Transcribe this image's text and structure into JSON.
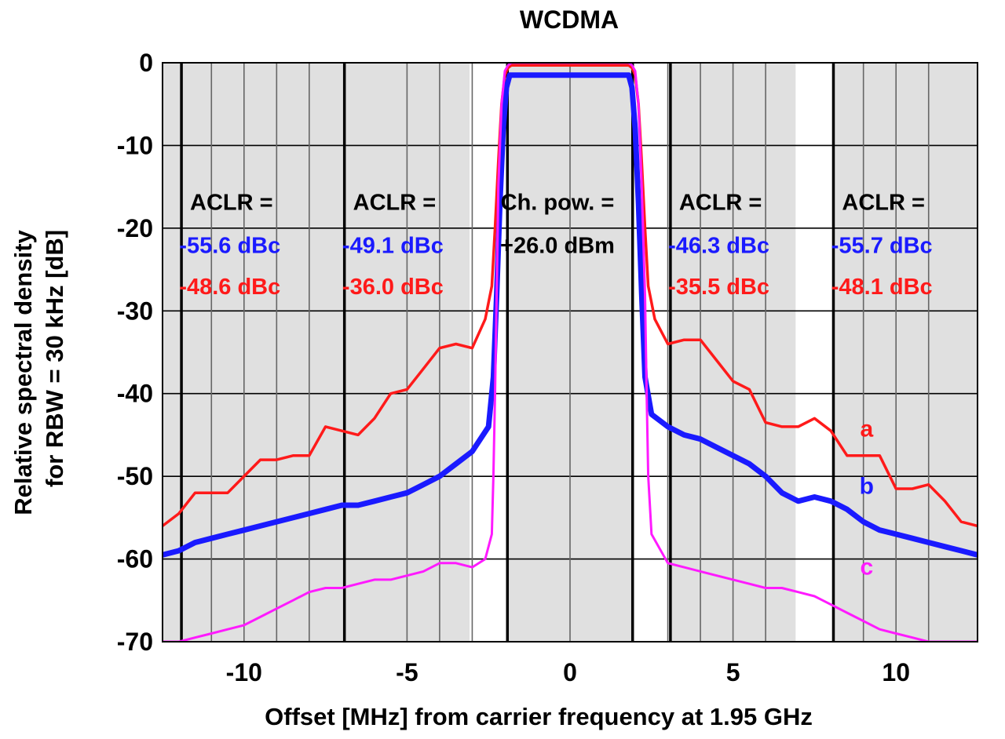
{
  "chart_data": {
    "type": "line",
    "title": "WCDMA",
    "xlabel": "Offset [MHz] from carrier frequency at 1.95 GHz",
    "ylabel_lines": [
      "Relative spectral density",
      "for RBW = 30 kHz [dB]"
    ],
    "xlim": [
      -12.5,
      12.5
    ],
    "ylim": [
      -70,
      0
    ],
    "xticks": [
      -10,
      -5,
      0,
      5,
      10
    ],
    "xtick_labels": [
      "-10",
      "-5",
      "0",
      "5",
      "10"
    ],
    "yticks": [
      0,
      -10,
      -20,
      -30,
      -40,
      -50,
      -60,
      -70
    ],
    "ytick_labels": [
      "0",
      "-10",
      "-20",
      "-30",
      "-40",
      "-50",
      "-60",
      "-70"
    ],
    "minor_gridlines_x": [
      -11,
      -9,
      -8,
      -4,
      -3,
      3,
      4,
      6,
      9,
      11
    ],
    "channel_bands": [
      {
        "from": -12.5,
        "to": -11.92
      },
      {
        "from": -11.92,
        "to": -6.92
      },
      {
        "from": -6.92,
        "to": -1.92
      },
      {
        "from": -1.92,
        "to": 1.92
      },
      {
        "from": 3.08,
        "to": 8.08
      },
      {
        "from": 8.08,
        "to": 12.5
      }
    ],
    "channel_band_lines_x": [
      -11.92,
      -6.92,
      -1.92,
      1.92,
      3.08,
      8.08
    ],
    "shaded_bands": [
      {
        "from": -12.5,
        "to": -6.92
      },
      {
        "from": -6.92,
        "to": -3.08
      },
      {
        "from": -1.92,
        "to": 1.92
      },
      {
        "from": 3.08,
        "to": 6.92
      },
      {
        "from": 8.08,
        "to": 12.5
      }
    ],
    "annotations": [
      {
        "x": -10.0,
        "header": "ACLR =",
        "blue": "-55.6 dBc",
        "red": "-48.6 dBc"
      },
      {
        "x": -5.0,
        "header": "ACLR =",
        "blue": "-49.1 dBc",
        "red": "-36.0 dBc"
      },
      {
        "x": 0.0,
        "header": "Ch. pow. =",
        "black": "+26.0 dBm"
      },
      {
        "x": 5.0,
        "header": "ACLR =",
        "blue": "-46.3 dBc",
        "red": "-35.5 dBc"
      },
      {
        "x": 10.0,
        "header": "ACLR =",
        "blue": "-55.7 dBc",
        "red": "-48.1 dBc"
      }
    ],
    "series": [
      {
        "name": "a",
        "color": "#ff1a1a",
        "label_at": [
          9.1,
          -45.2
        ],
        "x": [
          -12.5,
          -12,
          -11.5,
          -11,
          -10.5,
          -10,
          -9.5,
          -9,
          -8.5,
          -8,
          -7.5,
          -7,
          -6.5,
          -6,
          -5.5,
          -5,
          -4.5,
          -4,
          -3.5,
          -3,
          -2.6,
          -2.4,
          -2.3,
          -2.2,
          -2.1,
          -2.0,
          -1.9,
          -1.8,
          -1.5,
          -1.0,
          -0.5,
          0,
          0.5,
          1.0,
          1.5,
          1.8,
          1.9,
          2.0,
          2.1,
          2.2,
          2.3,
          2.4,
          2.6,
          3,
          3.5,
          4,
          4.5,
          5,
          5.5,
          6,
          6.5,
          7,
          7.5,
          8,
          8.5,
          9,
          9.5,
          10,
          10.5,
          11,
          11.5,
          12,
          12.5
        ],
        "y": [
          -56,
          -54.5,
          -52,
          -52,
          -52,
          -50,
          -48,
          -48,
          -47.5,
          -47.5,
          -44,
          -44.5,
          -45,
          -43,
          -40,
          -39.5,
          -37,
          -34.5,
          -34,
          -34.5,
          -31,
          -27,
          -20,
          -12,
          -5,
          -1.5,
          -0.6,
          -0.3,
          -0.3,
          -0.3,
          -0.3,
          -0.3,
          -0.3,
          -0.3,
          -0.3,
          -0.3,
          -0.6,
          -1.5,
          -5,
          -12,
          -20,
          -27,
          -31,
          -34,
          -33.5,
          -33.5,
          -36,
          -38.5,
          -39.5,
          -43.5,
          -44,
          -44,
          -43,
          -44.5,
          -47.5,
          -47.5,
          -47.5,
          -51.5,
          -51.5,
          -51,
          -53,
          -55.5,
          -56
        ]
      },
      {
        "name": "b",
        "color": "#1a1aff",
        "label_at": [
          9.1,
          -52.1
        ],
        "x": [
          -12.5,
          -12,
          -11.5,
          -11,
          -10.5,
          -10,
          -9.5,
          -9,
          -8.5,
          -8,
          -7.5,
          -7,
          -6.5,
          -6,
          -5.5,
          -5,
          -4.5,
          -4,
          -3.5,
          -3,
          -2.5,
          -2.35,
          -2.25,
          -2.15,
          -2.05,
          -1.95,
          -1.85,
          -1.5,
          -1.0,
          -0.5,
          0,
          0.5,
          1.0,
          1.5,
          1.8,
          1.9,
          2.0,
          2.1,
          2.2,
          2.3,
          2.5,
          3,
          3.5,
          4,
          4.5,
          5,
          5.5,
          6,
          6.5,
          7,
          7.5,
          8,
          8.5,
          9,
          9.5,
          10,
          10.5,
          11,
          11.5,
          12,
          12.5
        ],
        "y": [
          -59.5,
          -59,
          -58,
          -57.5,
          -57,
          -56.5,
          -56,
          -55.5,
          -55,
          -54.5,
          -54,
          -53.5,
          -53.5,
          -53,
          -52.5,
          -52,
          -51,
          -50,
          -48.5,
          -47,
          -44,
          -38,
          -28,
          -17,
          -8,
          -3,
          -1.5,
          -1.5,
          -1.5,
          -1.5,
          -1.5,
          -1.5,
          -1.5,
          -1.5,
          -1.5,
          -3,
          -8,
          -17,
          -28,
          -38,
          -42.5,
          -44,
          -45,
          -45.5,
          -46.5,
          -47.5,
          -48.5,
          -50,
          -52,
          -53,
          -52.5,
          -53,
          -54,
          -55.5,
          -56.5,
          -57,
          -57.5,
          -58,
          -58.5,
          -59,
          -59.5
        ]
      },
      {
        "name": "c",
        "color": "#ff1aff",
        "label_at": [
          9.1,
          -61.9
        ],
        "x": [
          -12.5,
          -12,
          -11.5,
          -11,
          -10.5,
          -10,
          -9.5,
          -9,
          -8.5,
          -8,
          -7.5,
          -7,
          -6.5,
          -6,
          -5.5,
          -5,
          -4.5,
          -4,
          -3.5,
          -3,
          -2.6,
          -2.4,
          -2.35,
          -2.3,
          -2.25,
          -2.2,
          -2.1,
          -2.0,
          -1.9,
          -1.8,
          -1.5,
          -1.0,
          -0.5,
          0,
          0.5,
          1.0,
          1.5,
          1.8,
          1.9,
          2.0,
          2.1,
          2.2,
          2.3,
          2.35,
          2.4,
          2.5,
          3,
          3.5,
          4,
          4.5,
          5,
          5.5,
          6,
          6.5,
          7,
          7.5,
          8,
          8.5,
          9,
          9.5,
          10,
          10.5,
          11,
          11.5,
          12,
          12.5
        ],
        "y": [
          -70,
          -70,
          -69.5,
          -69,
          -68.5,
          -68,
          -67,
          -66,
          -65,
          -64,
          -63.5,
          -63.5,
          -63,
          -62.5,
          -62.5,
          -62,
          -61.5,
          -60.5,
          -60.5,
          -61,
          -60,
          -57,
          -50,
          -40,
          -28,
          -15,
          -5,
          -1,
          -0.3,
          0,
          0,
          0,
          0,
          0,
          0,
          0,
          0,
          0,
          -0.3,
          -1,
          -5,
          -15,
          -28,
          -40,
          -50,
          -57,
          -60.5,
          -61,
          -61.5,
          -62,
          -62.5,
          -63,
          -63.5,
          -63.5,
          -64,
          -64.5,
          -65.5,
          -66.5,
          -67.5,
          -68.5,
          -69,
          -69.5,
          -70,
          -70,
          -70,
          -70
        ]
      }
    ],
    "grid": true
  }
}
